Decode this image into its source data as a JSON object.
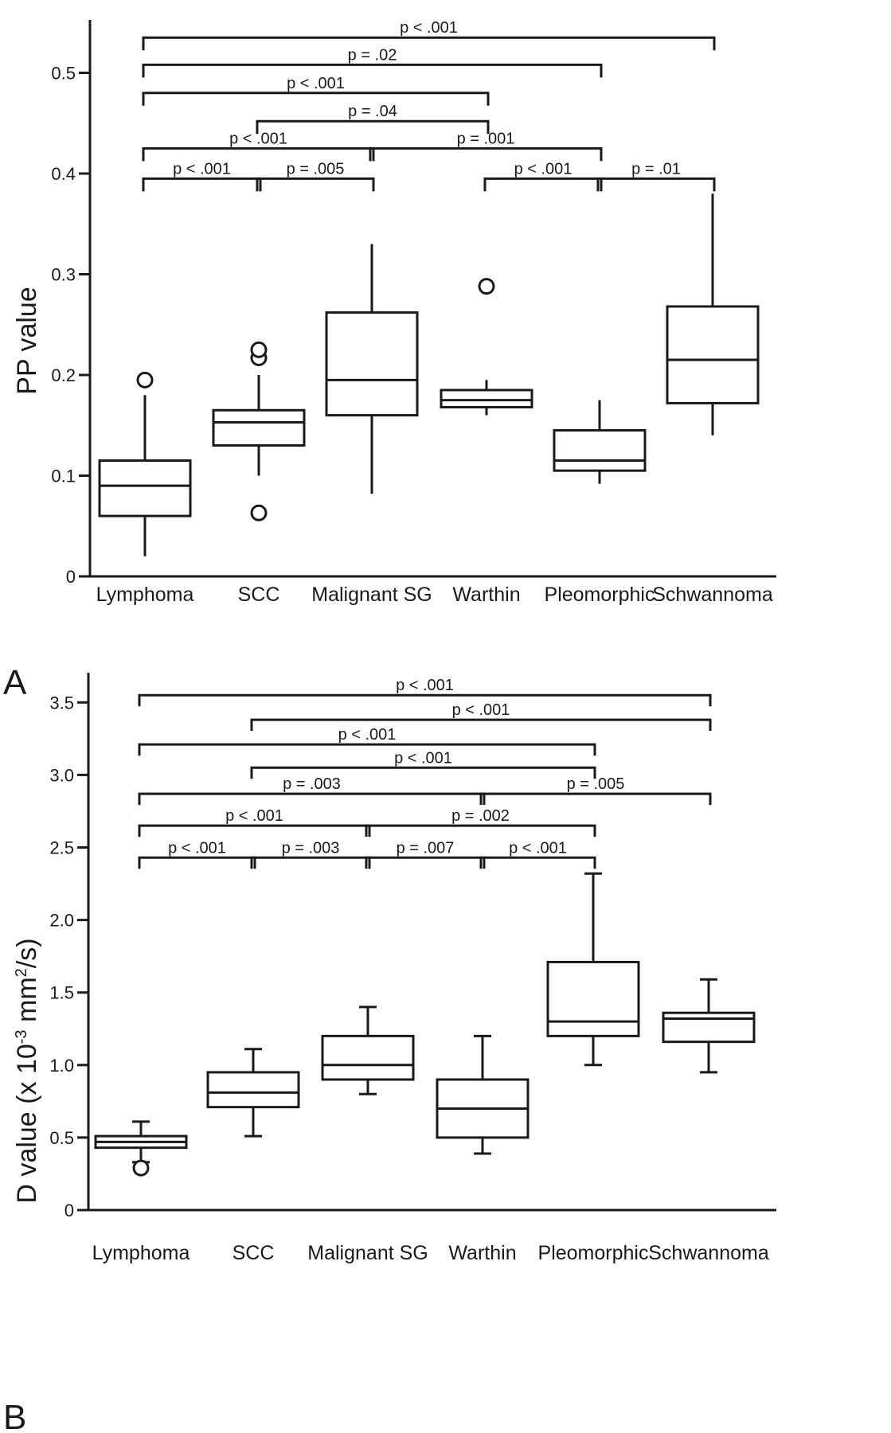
{
  "chart_data": [
    {
      "panel_label": "A",
      "type": "box",
      "categories": [
        "Lymphoma",
        "SCC",
        "Malignant SG",
        "Warthin",
        "Pleomorphic",
        "Schwannoma"
      ],
      "ylabel": "PP value",
      "ylim": [
        0,
        0.55
      ],
      "yticks": [
        "0",
        "0.1",
        "0.2",
        "0.3",
        "0.4",
        "0.5"
      ],
      "ytick_values": [
        0,
        0.1,
        0.2,
        0.3,
        0.4,
        0.5
      ],
      "boxes": [
        {
          "whisker_low": 0.02,
          "q1": 0.06,
          "median": 0.09,
          "q3": 0.115,
          "whisker_high": 0.18,
          "outliers": [
            0.195
          ]
        },
        {
          "whisker_low": 0.1,
          "q1": 0.13,
          "median": 0.153,
          "q3": 0.165,
          "whisker_high": 0.2,
          "outliers": [
            0.063,
            0.217,
            0.225
          ]
        },
        {
          "whisker_low": 0.082,
          "q1": 0.16,
          "median": 0.195,
          "q3": 0.262,
          "whisker_high": 0.33,
          "outliers": []
        },
        {
          "whisker_low": 0.16,
          "q1": 0.168,
          "median": 0.175,
          "q3": 0.185,
          "whisker_high": 0.195,
          "outliers": [
            0.288
          ]
        },
        {
          "whisker_low": 0.092,
          "q1": 0.105,
          "median": 0.115,
          "q3": 0.145,
          "whisker_high": 0.175,
          "outliers": []
        },
        {
          "whisker_low": 0.14,
          "q1": 0.172,
          "median": 0.215,
          "q3": 0.268,
          "whisker_high": 0.38,
          "outliers": []
        }
      ],
      "comparisons": [
        {
          "from": 0,
          "to": 5,
          "y": 0.535,
          "label": "p < .001"
        },
        {
          "from": 0,
          "to": 4,
          "y": 0.508,
          "label": "p = .02"
        },
        {
          "from": 0,
          "to": 3,
          "y": 0.48,
          "label": "p < .001"
        },
        {
          "from": 1,
          "to": 3,
          "y": 0.452,
          "label": "p = .04"
        },
        {
          "from": 0,
          "to": 2,
          "y": 0.425,
          "label": "p < .001"
        },
        {
          "from": 2,
          "to": 4,
          "y": 0.425,
          "label": "p = .001"
        },
        {
          "from": 0,
          "to": 1,
          "y": 0.395,
          "label": "p < .001"
        },
        {
          "from": 1,
          "to": 2,
          "y": 0.395,
          "label": "p = .005"
        },
        {
          "from": 3,
          "to": 4,
          "y": 0.395,
          "label": "p < .001"
        },
        {
          "from": 4,
          "to": 5,
          "y": 0.395,
          "label": "p = .01"
        }
      ]
    },
    {
      "panel_label": "B",
      "type": "box",
      "categories": [
        "Lymphoma",
        "SCC",
        "Malignant SG",
        "Warthin",
        "Pleomorphic",
        "Schwannoma"
      ],
      "ylabel": "D value (x 10",
      "ylabel_exp1": "-3",
      "ylabel_mid": " mm",
      "ylabel_exp2": "2",
      "ylabel_end": "/s)",
      "ylim": [
        0,
        3.7
      ],
      "yticks": [
        "0",
        "0.5",
        "1.0",
        "1.5",
        "2.0",
        "2.5",
        "3.0",
        "3.5"
      ],
      "ytick_values": [
        0,
        0.5,
        1.0,
        1.5,
        2.0,
        2.5,
        3.0,
        3.5
      ],
      "boxes": [
        {
          "whisker_low": 0.33,
          "q1": 0.43,
          "median": 0.47,
          "q3": 0.51,
          "whisker_high": 0.61,
          "outliers": [
            0.29
          ]
        },
        {
          "whisker_low": 0.51,
          "q1": 0.71,
          "median": 0.81,
          "q3": 0.95,
          "whisker_high": 1.11,
          "outliers": []
        },
        {
          "whisker_low": 0.8,
          "q1": 0.9,
          "median": 1.0,
          "q3": 1.2,
          "whisker_high": 1.4,
          "outliers": []
        },
        {
          "whisker_low": 0.39,
          "q1": 0.5,
          "median": 0.7,
          "q3": 0.9,
          "whisker_high": 1.2,
          "outliers": []
        },
        {
          "whisker_low": 1.0,
          "q1": 1.2,
          "median": 1.3,
          "q3": 1.71,
          "whisker_high": 2.32,
          "outliers": []
        },
        {
          "whisker_low": 0.95,
          "q1": 1.16,
          "median": 1.32,
          "q3": 1.36,
          "whisker_high": 1.59,
          "outliers": []
        }
      ],
      "comparisons": [
        {
          "from": 0,
          "to": 5,
          "y": 3.55,
          "label": "p < .001"
        },
        {
          "from": 1,
          "to": 5,
          "y": 3.38,
          "label": "p < .001"
        },
        {
          "from": 0,
          "to": 4,
          "y": 3.21,
          "label": "p < .001"
        },
        {
          "from": 1,
          "to": 4,
          "y": 3.05,
          "label": "p < .001"
        },
        {
          "from": 0,
          "to": 3,
          "y": 2.87,
          "label": "p = .003"
        },
        {
          "from": 3,
          "to": 5,
          "y": 2.87,
          "label": "p = .005"
        },
        {
          "from": 0,
          "to": 2,
          "y": 2.65,
          "label": "p < .001"
        },
        {
          "from": 2,
          "to": 4,
          "y": 2.65,
          "label": "p = .002"
        },
        {
          "from": 0,
          "to": 1,
          "y": 2.43,
          "label": "p < .001"
        },
        {
          "from": 1,
          "to": 2,
          "y": 2.43,
          "label": "p = .003"
        },
        {
          "from": 2,
          "to": 3,
          "y": 2.43,
          "label": "p = .007"
        },
        {
          "from": 3,
          "to": 4,
          "y": 2.43,
          "label": "p < .001"
        }
      ]
    }
  ]
}
